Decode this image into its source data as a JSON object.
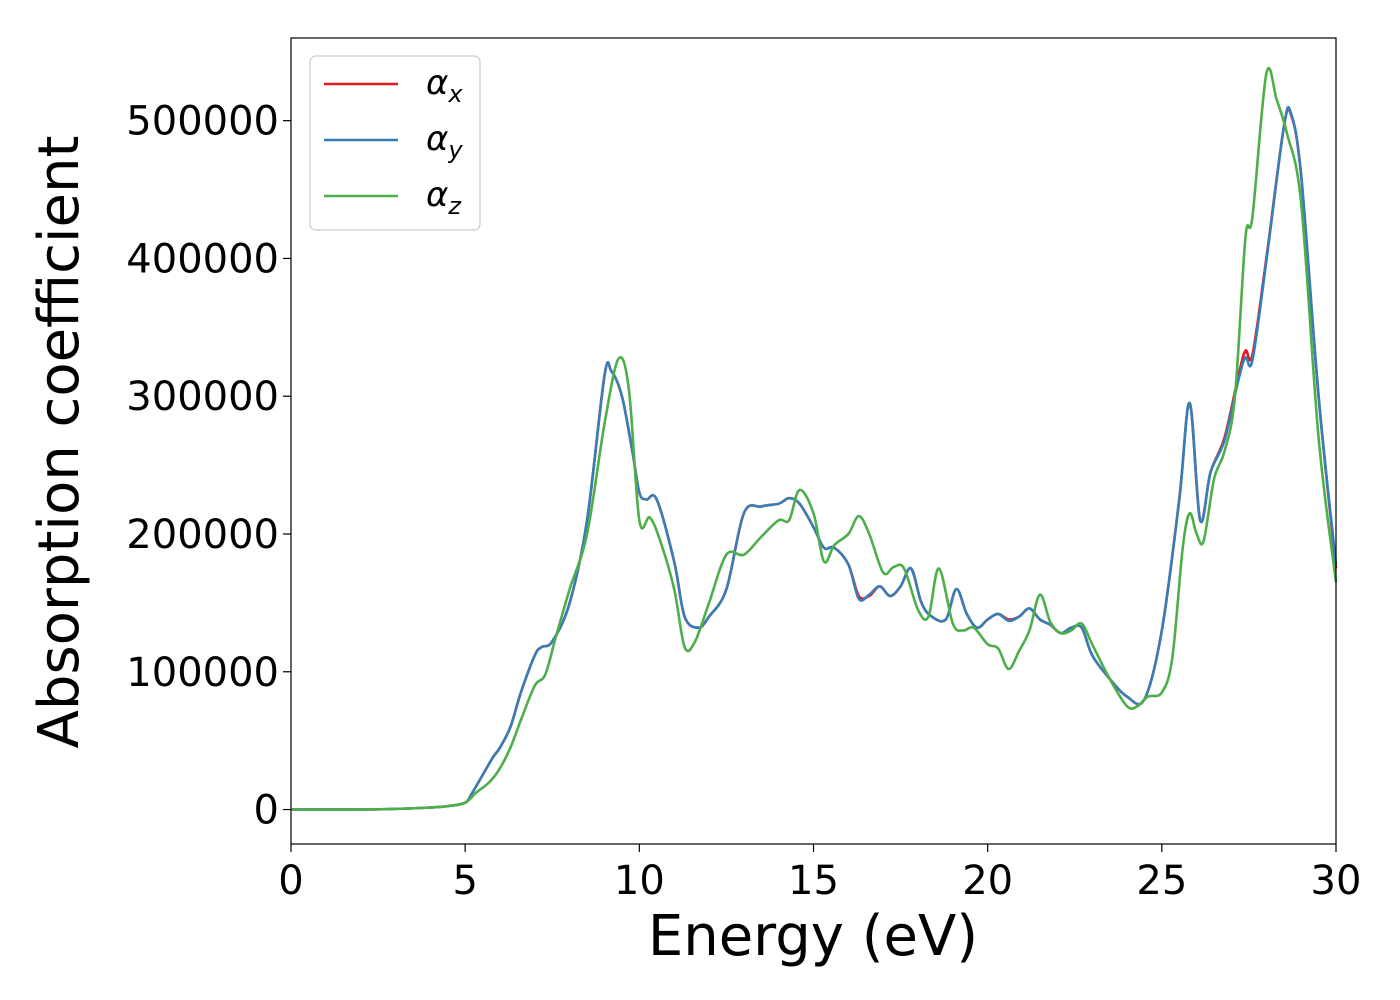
{
  "chart_data": {
    "type": "line",
    "xlabel": "Energy (eV)",
    "ylabel": "Absorption coefficient",
    "xlim": [
      0,
      30
    ],
    "ylim": [
      -25000,
      560000
    ],
    "xticks": [
      0,
      5,
      10,
      15,
      20,
      25,
      30
    ],
    "xtick_labels": [
      "0",
      "5",
      "10",
      "15",
      "20",
      "25",
      "30"
    ],
    "yticks": [
      0,
      100000,
      200000,
      300000,
      400000,
      500000
    ],
    "ytick_labels": [
      "0",
      "100000",
      "200000",
      "300000",
      "400000",
      "500000"
    ],
    "grid": false,
    "legend_position": "top-left",
    "series": [
      {
        "name": "α",
        "subscript": "x",
        "color": "#e41a1c",
        "x": [
          0,
          2,
          3,
          4,
          4.5,
          5,
          5.2,
          5.5,
          5.8,
          6,
          6.3,
          6.6,
          7,
          7.2,
          7.5,
          8,
          8.5,
          9,
          9.2,
          9.5,
          9.8,
          10,
          10.2,
          10.5,
          11,
          11.3,
          11.7,
          12,
          12.5,
          13,
          13.5,
          14,
          14.3,
          14.6,
          15,
          15.3,
          15.6,
          16,
          16.3,
          16.6,
          16.9,
          17.2,
          17.5,
          17.8,
          18.1,
          18.4,
          18.8,
          19.1,
          19.4,
          19.7,
          20,
          20.3,
          20.6,
          20.9,
          21.2,
          21.5,
          21.8,
          22.1,
          22.4,
          22.7,
          23,
          23.5,
          24,
          24.5,
          25,
          25.5,
          25.8,
          26.1,
          26.4,
          26.8,
          27.2,
          27.4,
          27.6,
          28,
          28.5,
          28.7,
          29,
          29.5,
          30
        ],
        "values": [
          0,
          0,
          500,
          1500,
          2500,
          5000,
          12000,
          25000,
          38000,
          45000,
          60000,
          85000,
          112000,
          118000,
          122000,
          150000,
          210000,
          315000,
          318000,
          300000,
          260000,
          230000,
          225000,
          225000,
          180000,
          140000,
          132000,
          140000,
          160000,
          215000,
          220000,
          222000,
          226000,
          222000,
          205000,
          190000,
          190000,
          178000,
          155000,
          155000,
          162000,
          155000,
          162000,
          175000,
          150000,
          140000,
          138000,
          160000,
          142000,
          132000,
          138000,
          142000,
          138000,
          140000,
          146000,
          138000,
          134000,
          128000,
          132000,
          132000,
          112000,
          95000,
          82000,
          80000,
          130000,
          225000,
          295000,
          210000,
          245000,
          270000,
          315000,
          333000,
          330000,
          400000,
          495000,
          505000,
          460000,
          300000,
          175000
        ]
      },
      {
        "name": "α",
        "subscript": "y",
        "color": "#377eb8",
        "x": [
          0,
          2,
          3,
          4,
          4.5,
          5,
          5.2,
          5.5,
          5.8,
          6,
          6.3,
          6.6,
          7,
          7.2,
          7.5,
          8,
          8.5,
          9,
          9.2,
          9.5,
          9.8,
          10,
          10.2,
          10.5,
          11,
          11.3,
          11.7,
          12,
          12.5,
          13,
          13.5,
          14,
          14.3,
          14.6,
          15,
          15.3,
          15.6,
          16,
          16.3,
          16.6,
          16.9,
          17.2,
          17.5,
          17.8,
          18.1,
          18.4,
          18.8,
          19.1,
          19.4,
          19.7,
          20,
          20.3,
          20.6,
          20.9,
          21.2,
          21.5,
          21.8,
          22.1,
          22.4,
          22.7,
          23,
          23.5,
          24,
          24.5,
          25,
          25.5,
          25.8,
          26.1,
          26.4,
          26.8,
          27.2,
          27.4,
          27.6,
          28,
          28.5,
          28.7,
          29,
          29.5,
          30
        ],
        "values": [
          0,
          0,
          500,
          1500,
          2500,
          5000,
          12000,
          25000,
          38000,
          45000,
          60000,
          85000,
          112000,
          118000,
          122000,
          150000,
          210000,
          315000,
          318000,
          300000,
          260000,
          230000,
          225000,
          225000,
          180000,
          140000,
          132000,
          140000,
          160000,
          215000,
          220000,
          222000,
          226000,
          222000,
          205000,
          190000,
          190000,
          178000,
          153000,
          156000,
          162000,
          155000,
          162000,
          175000,
          150000,
          140000,
          138000,
          160000,
          142000,
          132000,
          138000,
          142000,
          137000,
          140000,
          146000,
          138000,
          134000,
          128000,
          132000,
          132000,
          112000,
          95000,
          82000,
          80000,
          130000,
          225000,
          295000,
          210000,
          245000,
          268000,
          312000,
          328000,
          326000,
          398000,
          495000,
          506000,
          460000,
          300000,
          178000
        ]
      },
      {
        "name": "α",
        "subscript": "z",
        "color": "#4daf4a",
        "x": [
          0,
          2,
          3,
          4,
          4.5,
          5,
          5.3,
          5.7,
          6,
          6.3,
          6.6,
          7,
          7.3,
          7.6,
          8,
          8.5,
          9,
          9.4,
          9.7,
          10,
          10.3,
          10.6,
          11,
          11.3,
          11.6,
          12,
          12.5,
          13,
          13.5,
          14,
          14.3,
          14.6,
          15,
          15.3,
          15.6,
          16,
          16.3,
          16.6,
          17,
          17.3,
          17.6,
          18,
          18.3,
          18.6,
          19,
          19.3,
          19.6,
          20,
          20.3,
          20.6,
          20.9,
          21.2,
          21.5,
          21.8,
          22.1,
          22.4,
          22.7,
          23,
          23.5,
          24,
          24.3,
          24.6,
          25,
          25.3,
          25.6,
          25.8,
          26,
          26.2,
          26.5,
          26.8,
          27.1,
          27.4,
          27.6,
          28,
          28.3,
          28.6,
          29,
          29.5,
          30
        ],
        "values": [
          0,
          0,
          500,
          1500,
          2500,
          5000,
          12000,
          20000,
          30000,
          45000,
          65000,
          90000,
          98000,
          125000,
          160000,
          200000,
          280000,
          327000,
          305000,
          210000,
          212000,
          195000,
          160000,
          118000,
          122000,
          150000,
          185000,
          185000,
          198000,
          210000,
          210000,
          232000,
          215000,
          180000,
          192000,
          200000,
          213000,
          200000,
          172000,
          176000,
          175000,
          145000,
          140000,
          175000,
          135000,
          130000,
          132000,
          120000,
          117000,
          102000,
          115000,
          130000,
          156000,
          136000,
          128000,
          130000,
          135000,
          120000,
          95000,
          75000,
          75000,
          82000,
          85000,
          110000,
          190000,
          215000,
          200000,
          195000,
          240000,
          260000,
          300000,
          415000,
          430000,
          534000,
          515000,
          490000,
          440000,
          270000,
          165000
        ]
      }
    ]
  }
}
